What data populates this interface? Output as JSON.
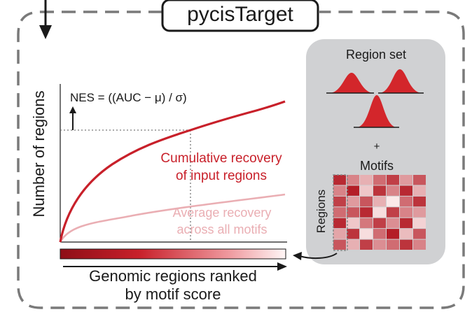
{
  "diagram": {
    "title": "pycisTarget",
    "y_axis_label": "Number of regions",
    "x_axis_label_line1": "Genomic regions ranked",
    "x_axis_label_line2": "by motif score",
    "formula": "NES = ((AUC − μ) / σ)",
    "cumulative_label_line1": "Cumulative recovery",
    "cumulative_label_line2": "of input regions",
    "average_label_line1": "Average recovery",
    "average_label_line2": "across all motifs",
    "panel": {
      "region_set_label": "Region set",
      "plus_label": "+",
      "motifs_label": "Motifs",
      "regions_label": "Regions"
    },
    "colors": {
      "dark_red": "#c8202a",
      "light_red": "#eaaeb3",
      "panel_gray": "#d0d1d3",
      "dashed_border": "#7a7a7a"
    },
    "heatmap": [
      [
        0.9,
        0.5,
        0.3,
        0.6,
        0.8,
        0.4,
        0.7
      ],
      [
        0.5,
        0.95,
        0.2,
        0.85,
        0.5,
        0.9,
        0.3
      ],
      [
        0.8,
        0.4,
        0.7,
        0.3,
        0.05,
        0.6,
        0.85
      ],
      [
        0.6,
        0.7,
        0.9,
        0.1,
        0.8,
        0.5,
        0.4
      ],
      [
        0.9,
        0.2,
        0.55,
        0.8,
        0.45,
        0.9,
        0.15
      ],
      [
        0.35,
        0.85,
        0.1,
        0.6,
        0.95,
        0.25,
        0.7
      ],
      [
        0.7,
        0.3,
        0.8,
        0.45,
        0.6,
        0.85,
        0.5
      ]
    ]
  }
}
